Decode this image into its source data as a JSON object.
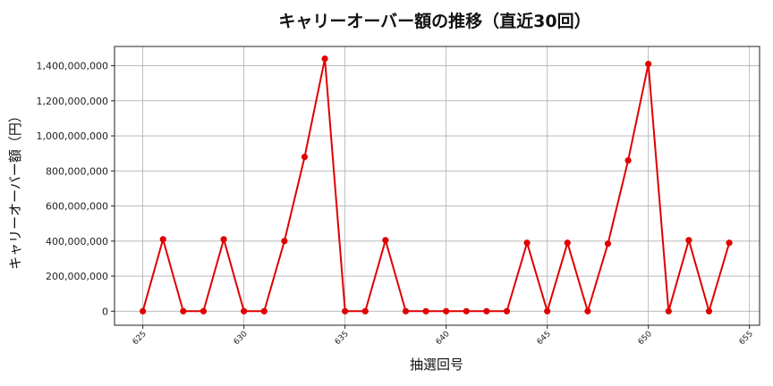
{
  "chart_data": {
    "type": "line",
    "title": "キャリーオーバー額の推移（直近30回）",
    "xlabel": "抽選回号",
    "ylabel": "キャリーオーバー額（円）",
    "x": [
      625,
      626,
      627,
      628,
      629,
      630,
      631,
      632,
      633,
      634,
      635,
      636,
      637,
      638,
      639,
      640,
      641,
      642,
      643,
      644,
      645,
      646,
      647,
      648,
      649,
      650,
      651,
      652,
      653,
      654
    ],
    "series": [
      {
        "values": [
          0,
          410000000,
          0,
          0,
          410000000,
          0,
          0,
          400000000,
          880000000,
          1440000000,
          0,
          0,
          405000000,
          0,
          0,
          0,
          0,
          0,
          0,
          390000000,
          0,
          390000000,
          0,
          385000000,
          860000000,
          1410000000,
          0,
          405000000,
          0,
          390000000
        ],
        "color": "#e00000"
      }
    ],
    "xlim": [
      623.6,
      655.5
    ],
    "ylim": [
      -80000000,
      1510000000
    ],
    "xticks": [
      625,
      630,
      635,
      640,
      645,
      650,
      655
    ],
    "yticks": [
      0,
      200000000,
      400000000,
      600000000,
      800000000,
      1000000000,
      1200000000,
      1400000000
    ],
    "xtick_labels": [
      "625",
      "630",
      "635",
      "640",
      "645",
      "650",
      "655"
    ],
    "ytick_labels": [
      "0",
      "200,000,000",
      "400,000,000",
      "600,000,000",
      "800,000,000",
      "1,000,000,000",
      "1,200,000,000",
      "1,400,000,000"
    ],
    "grid": true,
    "legend": "none"
  }
}
